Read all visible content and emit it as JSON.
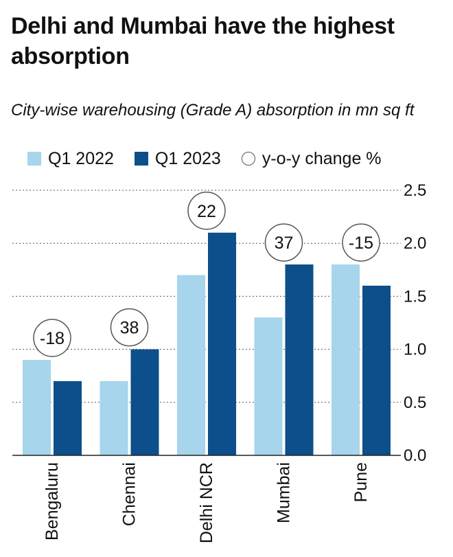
{
  "chart_data": {
    "type": "bar",
    "title": "Delhi and Mumbai have the highest absorption",
    "subtitle": "City-wise warehousing (Grade A) absorption in mn sq ft",
    "categories": [
      "Bengaluru",
      "Chennai",
      "Delhi NCR",
      "Mumbai",
      "Pune"
    ],
    "series": [
      {
        "name": "Q1 2022",
        "color": "#a6d5ec",
        "values": [
          0.9,
          0.7,
          1.7,
          1.3,
          1.8
        ]
      },
      {
        "name": "Q1 2023",
        "color": "#0c4f8a",
        "values": [
          0.7,
          1.0,
          2.1,
          1.8,
          1.6
        ]
      }
    ],
    "yoy_label": "y-o-y change %",
    "yoy_change": [
      "-18",
      "38",
      "22",
      "37",
      "-15"
    ],
    "ylim": [
      0,
      2.5
    ],
    "yticks": [
      "0.0",
      "0.5",
      "1.0",
      "1.5",
      "2.0",
      "2.5"
    ],
    "y_axis_side": "right",
    "grid": true,
    "legend_position": "top"
  }
}
